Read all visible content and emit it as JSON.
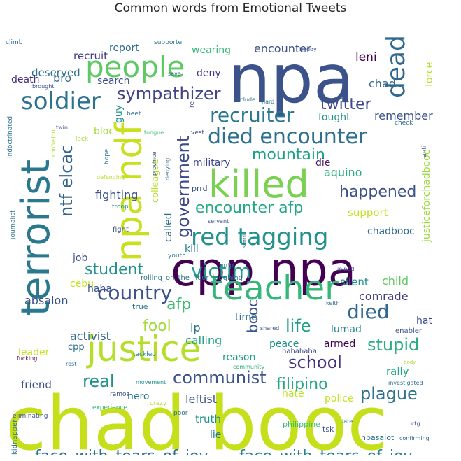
{
  "chart_data": {
    "type": "wordcloud",
    "title": "Common words from Emotional Tweets",
    "words": [
      {
        "text": "chad booc",
        "color": "#c5df1b"
      },
      {
        "text": "npa",
        "color": "#3b528b"
      },
      {
        "text": "cpp npa",
        "color": "#440154"
      },
      {
        "text": "terrorist",
        "color": "#2a788e"
      },
      {
        "text": "npa ndf",
        "color": "#c8e020"
      },
      {
        "text": "killed",
        "color": "#7ad151"
      },
      {
        "text": "justice",
        "color": "#b5de2b"
      },
      {
        "text": "teacher",
        "color": "#35b779"
      },
      {
        "text": "people",
        "color": "#5ec962"
      },
      {
        "text": "red tagging",
        "color": "#21918c"
      },
      {
        "text": "dead",
        "color": "#31688e"
      },
      {
        "text": "soldier",
        "color": "#2c728e"
      },
      {
        "text": "died encounter",
        "color": "#2d708e"
      },
      {
        "text": "country",
        "color": "#3b528b"
      },
      {
        "text": "victim",
        "color": "#1f9e89"
      },
      {
        "text": "recruiter",
        "color": "#2a788e"
      },
      {
        "text": "government",
        "color": "#3e4989"
      },
      {
        "text": "ntf elcac",
        "color": "#33638d"
      },
      {
        "text": "encounter afp",
        "color": "#22a884"
      },
      {
        "text": "face_with_tears_of_joy",
        "color": "#2d708e"
      },
      {
        "text": "face_with_tears_of_joy",
        "color": "#26828e"
      },
      {
        "text": "school",
        "color": "#46337e"
      },
      {
        "text": "student",
        "color": "#21918c"
      },
      {
        "text": "communist",
        "color": "#3b528b"
      },
      {
        "text": "died",
        "color": "#31688e"
      },
      {
        "text": "sympathizer",
        "color": "#414487"
      },
      {
        "text": "mountain",
        "color": "#1fa187"
      },
      {
        "text": "happened",
        "color": "#3b528b"
      },
      {
        "text": "twitter",
        "color": "#3e4a89"
      },
      {
        "text": "stupid",
        "color": "#29af7f"
      },
      {
        "text": "plague",
        "color": "#2c728e"
      },
      {
        "text": "afp",
        "color": "#3fbc73"
      },
      {
        "text": "life",
        "color": "#1fa187"
      },
      {
        "text": "real",
        "color": "#21918c"
      },
      {
        "text": "fool",
        "color": "#a0da39"
      },
      {
        "text": "filipino",
        "color": "#22a884"
      },
      {
        "text": "booc",
        "color": "#39558c"
      },
      {
        "text": "encounter",
        "color": "#3b528b"
      },
      {
        "text": "recruit",
        "color": "#433e85"
      },
      {
        "text": "deserved",
        "color": "#2e6e8e"
      },
      {
        "text": "bro",
        "color": "#31688e"
      },
      {
        "text": "death",
        "color": "#472d7b"
      },
      {
        "text": "search",
        "color": "#3b528b"
      },
      {
        "text": "report",
        "color": "#2f6b8e"
      },
      {
        "text": "wearing",
        "color": "#35b779"
      },
      {
        "text": "deny",
        "color": "#443983"
      },
      {
        "text": "leni",
        "color": "#440154"
      },
      {
        "text": "chad",
        "color": "#31688e"
      },
      {
        "text": "force",
        "color": "#b5de2b"
      },
      {
        "text": "remember",
        "color": "#3b528b"
      },
      {
        "text": "fought",
        "color": "#21918c"
      },
      {
        "text": "bloc",
        "color": "#a5db36"
      },
      {
        "text": "guy",
        "color": "#20928c"
      },
      {
        "text": "military",
        "color": "#3e4989"
      },
      {
        "text": "die",
        "color": "#48186a"
      },
      {
        "text": "aquino",
        "color": "#2ab07f"
      },
      {
        "text": "fighting",
        "color": "#3b528b"
      },
      {
        "text": "support",
        "color": "#c2df23"
      },
      {
        "text": "chadbooc",
        "color": "#31688e"
      },
      {
        "text": "justiceforchadbooc",
        "color": "#9bd93c"
      },
      {
        "text": "colleague",
        "color": "#b5de2b"
      },
      {
        "text": "called",
        "color": "#2d708e"
      },
      {
        "text": "kill",
        "color": "#2a788e"
      },
      {
        "text": "job",
        "color": "#3b528b"
      },
      {
        "text": "child",
        "color": "#5ec962"
      },
      {
        "text": "silent",
        "color": "#21918c"
      },
      {
        "text": "comrade",
        "color": "#433e85"
      },
      {
        "text": "cebu",
        "color": "#c8e020"
      },
      {
        "text": "haha",
        "color": "#3b528b"
      },
      {
        "text": "true",
        "color": "#2a788e"
      },
      {
        "text": "absalon",
        "color": "#3b528b"
      },
      {
        "text": "ip",
        "color": "#2c728e"
      },
      {
        "text": "time",
        "color": "#2d708e"
      },
      {
        "text": "activist",
        "color": "#31688e"
      },
      {
        "text": "calling",
        "color": "#20a386"
      },
      {
        "text": "lumad",
        "color": "#26828e"
      },
      {
        "text": "hat",
        "color": "#3e4989"
      },
      {
        "text": "enabler",
        "color": "#3b528b"
      },
      {
        "text": "leader",
        "color": "#c8e020"
      },
      {
        "text": "cpp",
        "color": "#2d708e"
      },
      {
        "text": "peace",
        "color": "#21918c"
      },
      {
        "text": "armed",
        "color": "#440154"
      },
      {
        "text": "reason",
        "color": "#1f9e89"
      },
      {
        "text": "hahahaha",
        "color": "#3e4989"
      },
      {
        "text": "rally",
        "color": "#22a884"
      },
      {
        "text": "friend",
        "color": "#3b528b"
      },
      {
        "text": "hero",
        "color": "#2a788e"
      },
      {
        "text": "hate",
        "color": "#c2df23"
      },
      {
        "text": "police",
        "color": "#c5e021"
      },
      {
        "text": "leftist",
        "color": "#3b528b"
      },
      {
        "text": "truth",
        "color": "#21918c"
      },
      {
        "text": "lie",
        "color": "#2a788e"
      },
      {
        "text": "philippine",
        "color": "#3fbc73"
      },
      {
        "text": "tsk",
        "color": "#3b528b"
      },
      {
        "text": "npasalot",
        "color": "#2d708e"
      },
      {
        "text": "kidnapper",
        "color": "#2d708e"
      },
      {
        "text": "rolling_on_the_floor_laughing",
        "color": "#2c728e"
      },
      {
        "text": "tackled",
        "color": "#26828e"
      },
      {
        "text": "eliminating",
        "color": "#3b528b"
      },
      {
        "text": "experience",
        "color": "#35b779"
      },
      {
        "text": "crazy",
        "color": "#b5de2b"
      },
      {
        "text": "poor",
        "color": "#2d708e"
      },
      {
        "text": "ramos",
        "color": "#3b528b"
      },
      {
        "text": "movement",
        "color": "#21918c"
      },
      {
        "text": "fucking",
        "color": "#440154"
      },
      {
        "text": "rest",
        "color": "#2c728e"
      },
      {
        "text": "shared",
        "color": "#3b528b"
      },
      {
        "text": "community",
        "color": "#29af7f"
      },
      {
        "text": "investigated",
        "color": "#2d708e"
      },
      {
        "text": "body",
        "color": "#a5db36"
      },
      {
        "text": "confirming",
        "color": "#31688e"
      },
      {
        "text": "ctg",
        "color": "#3b528b"
      },
      {
        "text": "late",
        "color": "#2c728e"
      },
      {
        "text": "joined",
        "color": "#3b528b"
      },
      {
        "text": "keith",
        "color": "#31688e"
      },
      {
        "text": "youth",
        "color": "#2a788e"
      },
      {
        "text": "fight",
        "color": "#3b528b"
      },
      {
        "text": "amp",
        "color": "#2d708e"
      },
      {
        "text": "prrd",
        "color": "#3b528b"
      },
      {
        "text": "troop",
        "color": "#21918c"
      },
      {
        "text": "defending",
        "color": "#b5de2b"
      },
      {
        "text": "lack",
        "color": "#a5db36"
      },
      {
        "text": "hope",
        "color": "#2c728e"
      },
      {
        "text": "province",
        "color": "#3b528b"
      },
      {
        "text": "denying",
        "color": "#31688e"
      },
      {
        "text": "tongue",
        "color": "#3fbc73"
      },
      {
        "text": "twin",
        "color": "#3b528b"
      },
      {
        "text": "beef",
        "color": "#2d708e"
      },
      {
        "text": "vest",
        "color": "#3b528b"
      },
      {
        "text": "hard",
        "color": "#2c728e"
      },
      {
        "text": "include",
        "color": "#31688e"
      },
      {
        "text": "anti",
        "color": "#3b528b"
      },
      {
        "text": "check",
        "color": "#2d708e"
      },
      {
        "text": "servant",
        "color": "#3b528b"
      },
      {
        "text": "journalist",
        "color": "#2c728e"
      },
      {
        "text": "indoctrinated",
        "color": "#2d708e"
      },
      {
        "text": "brought",
        "color": "#3b528b"
      },
      {
        "text": "climb",
        "color": "#31688e"
      },
      {
        "text": "supporter",
        "color": "#2c728e"
      },
      {
        "text": "badoy",
        "color": "#3b528b"
      },
      {
        "text": "save",
        "color": "#2d708e"
      },
      {
        "text": "confusion",
        "color": "#b5de2b"
      },
      {
        "text": "smni",
        "color": "#2d708e"
      },
      {
        "text": "re",
        "color": "#3b528b"
      }
    ]
  }
}
